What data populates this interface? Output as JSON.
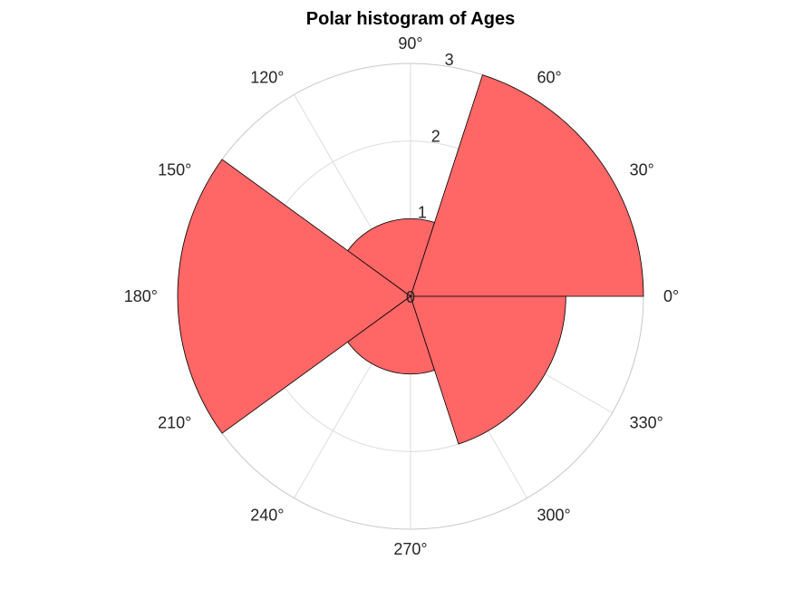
{
  "chart_data": {
    "type": "polar-histogram",
    "title": "Polar histogram of Ages",
    "bins": [
      {
        "start_deg": 0,
        "end_deg": 72,
        "value": 3
      },
      {
        "start_deg": 72,
        "end_deg": 144,
        "value": 1
      },
      {
        "start_deg": 144,
        "end_deg": 216,
        "value": 3
      },
      {
        "start_deg": 216,
        "end_deg": 288,
        "value": 1
      },
      {
        "start_deg": 288,
        "end_deg": 360,
        "value": 2
      }
    ],
    "rlim": [
      0,
      3
    ],
    "radial_ticks": [
      {
        "value": 0,
        "label": "0"
      },
      {
        "value": 1,
        "label": "1"
      },
      {
        "value": 2,
        "label": "2"
      },
      {
        "value": 3,
        "label": "3"
      }
    ],
    "radial_label_angle_deg": 80,
    "angle_ticks": [
      {
        "deg": 0,
        "label": "0°"
      },
      {
        "deg": 30,
        "label": "30°"
      },
      {
        "deg": 60,
        "label": "60°"
      },
      {
        "deg": 90,
        "label": "90°"
      },
      {
        "deg": 120,
        "label": "120°"
      },
      {
        "deg": 150,
        "label": "150°"
      },
      {
        "deg": 180,
        "label": "180°"
      },
      {
        "deg": 210,
        "label": "210°"
      },
      {
        "deg": 240,
        "label": "240°"
      },
      {
        "deg": 270,
        "label": "270°"
      },
      {
        "deg": 300,
        "label": "300°"
      },
      {
        "deg": 330,
        "label": "330°"
      }
    ],
    "grid": true,
    "colors": {
      "bar_fill": "#ff6666",
      "bar_edge": "#000000",
      "grid": "#dcdcdc"
    }
  }
}
